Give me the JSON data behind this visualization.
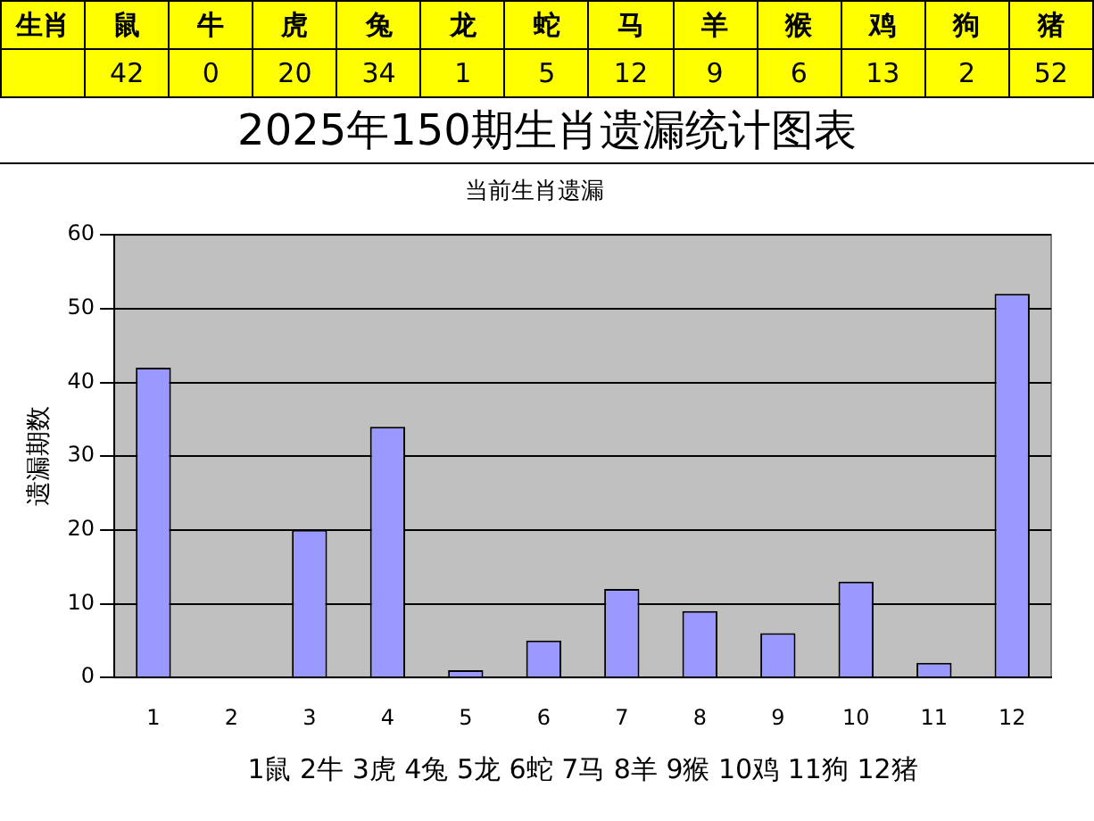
{
  "chart_data": [
    {
      "type": "other",
      "categories": [
        "鼠",
        "牛",
        "虎",
        "兔",
        "龙",
        "蛇",
        "马",
        "羊",
        "猴",
        "鸡",
        "狗",
        "猪"
      ],
      "values": [
        42,
        0,
        20,
        34,
        1,
        5,
        12,
        9,
        6,
        13,
        2,
        52
      ],
      "annotations": [
        "生肖"
      ],
      "color": "#ffff00",
      "data_labels": true
    },
    {
      "type": "bar",
      "title": "2025年150期生肖遗漏统计图表",
      "subtitle": "当前生肖遗漏",
      "ylabel": "遗漏期数",
      "categories": [
        "1",
        "2",
        "3",
        "4",
        "5",
        "6",
        "7",
        "8",
        "9",
        "10",
        "11",
        "12"
      ],
      "values": [
        42,
        0,
        20,
        34,
        1,
        5,
        12,
        9,
        6,
        13,
        2,
        52
      ],
      "color": "#9999ff",
      "ylim": [
        0,
        60
      ],
      "yticks": [
        0,
        10,
        20,
        30,
        40,
        50,
        60
      ],
      "grid": "y",
      "legend": false,
      "annotations": [
        "1鼠 2牛 3虎 4兔 5龙 6蛇 7马 8羊 9猴 10鸡 11狗 12猪"
      ]
    }
  ]
}
